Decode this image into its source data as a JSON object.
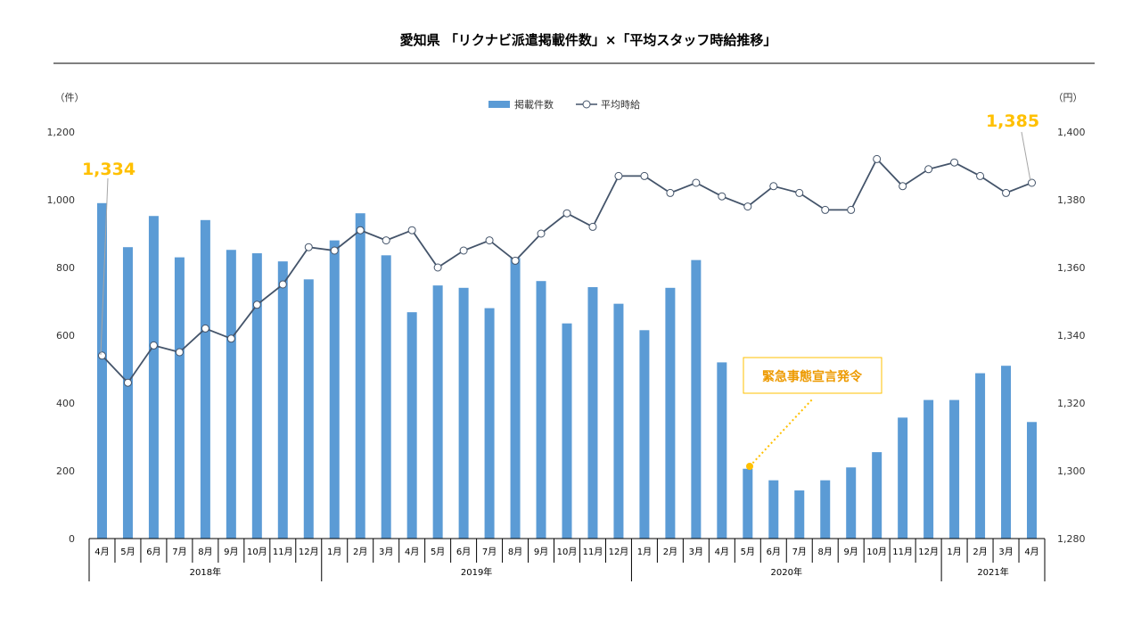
{
  "chart_data": {
    "type": "bar+line",
    "title": "愛知県 「リクナビ派遣掲載件数」×「平均スタッフ時給推移」",
    "y_left": {
      "unit": "（件）",
      "min": 0,
      "max": 1200,
      "ticks": [
        "0",
        "200",
        "400",
        "600",
        "800",
        "1,000",
        "1,200"
      ]
    },
    "y_right": {
      "unit": "（円）",
      "min": 1280,
      "max": 1400,
      "ticks": [
        "1,280",
        "1,300",
        "1,320",
        "1,340",
        "1,360",
        "1,380",
        "1,400"
      ]
    },
    "legend": {
      "position": "top-center",
      "bar_label": "掲載件数",
      "line_label": "平均時給"
    },
    "categories": [
      "4月",
      "5月",
      "6月",
      "7月",
      "8月",
      "9月",
      "10月",
      "11月",
      "12月",
      "1月",
      "2月",
      "3月",
      "4月",
      "5月",
      "6月",
      "7月",
      "8月",
      "9月",
      "10月",
      "11月",
      "12月",
      "1月",
      "2月",
      "3月",
      "4月",
      "5月",
      "6月",
      "7月",
      "8月",
      "9月",
      "10月",
      "11月",
      "12月",
      "1月",
      "2月",
      "3月",
      "4月"
    ],
    "years": [
      {
        "label": "2018年",
        "start": 0,
        "count": 9
      },
      {
        "label": "2019年",
        "start": 9,
        "count": 12
      },
      {
        "label": "2020年",
        "start": 21,
        "count": 12
      },
      {
        "label": "2021年",
        "start": 33,
        "count": 4
      }
    ],
    "series": [
      {
        "name": "掲載件数",
        "axis": "left",
        "type": "bar",
        "color": "#5b9bd5",
        "values": [
          990,
          860,
          952,
          830,
          940,
          852,
          842,
          818,
          765,
          880,
          960,
          836,
          668,
          747,
          740,
          680,
          828,
          760,
          635,
          742,
          693,
          615,
          740,
          822,
          520,
          206,
          172,
          142,
          172,
          210,
          255,
          357,
          409,
          409,
          488,
          510,
          344
        ]
      },
      {
        "name": "平均時給",
        "axis": "right",
        "type": "line",
        "color": "#44546a",
        "values": [
          1334,
          1326,
          1337,
          1335,
          1342,
          1339,
          1349,
          1355,
          1366,
          1365,
          1371,
          1368,
          1371,
          1360,
          1365,
          1368,
          1362,
          1370,
          1376,
          1372,
          1387,
          1387,
          1382,
          1385,
          1381,
          1378,
          1384,
          1382,
          1377,
          1377,
          1392,
          1384,
          1389,
          1391,
          1387,
          1382,
          1385
        ]
      }
    ],
    "annotations": {
      "start_value": "1,334",
      "end_value": "1,385",
      "event_label": "緊急事態宣言発令",
      "label_color": "#ffc000",
      "event_color": "#ed9a00"
    }
  }
}
